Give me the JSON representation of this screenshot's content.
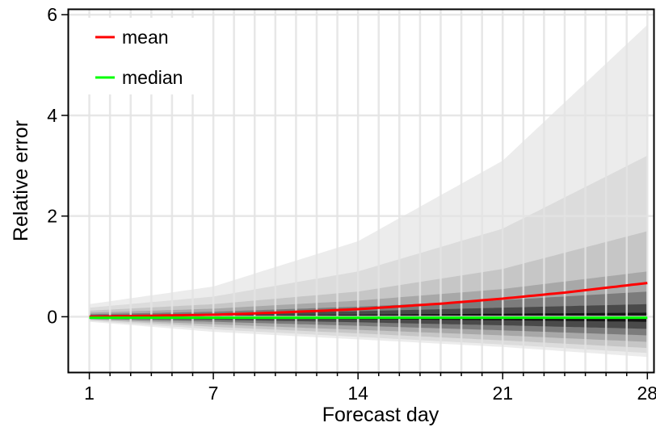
{
  "chart_data": {
    "type": "area",
    "xlabel": "Forecast day",
    "ylabel": "Relative error",
    "xlim": [
      0.0,
      28.3
    ],
    "ylim": [
      -1.1,
      6.1
    ],
    "x_ticks": [
      1,
      7,
      14,
      21,
      28
    ],
    "x_tick_labels": [
      "1",
      "7",
      "14",
      "21",
      "28"
    ],
    "y_ticks": [
      0,
      2,
      4,
      6
    ],
    "y_tick_labels": [
      "0",
      "2",
      "4",
      "6"
    ],
    "grid": "vertical at every forecast day, horizontal at y ticks",
    "legend_placement": "top-left",
    "days": [
      1,
      7,
      14,
      21,
      28
    ],
    "bands": [
      {
        "upper": [
          0.25,
          0.6,
          1.5,
          3.1,
          5.8
        ],
        "lower": [
          -0.1,
          -0.3,
          -0.45,
          -0.6,
          -0.8
        ],
        "color": "#ececec"
      },
      {
        "upper": [
          0.18,
          0.4,
          0.9,
          1.75,
          3.2
        ],
        "lower": [
          -0.08,
          -0.25,
          -0.4,
          -0.55,
          -0.72
        ],
        "color": "#dcdcdc"
      },
      {
        "upper": [
          0.12,
          0.25,
          0.5,
          0.95,
          1.7
        ],
        "lower": [
          -0.06,
          -0.2,
          -0.33,
          -0.47,
          -0.62
        ],
        "color": "#c6c6c6"
      },
      {
        "upper": [
          0.08,
          0.16,
          0.32,
          0.55,
          0.9
        ],
        "lower": [
          -0.05,
          -0.15,
          -0.26,
          -0.37,
          -0.5
        ],
        "color": "#a8a8a8"
      },
      {
        "upper": [
          0.05,
          0.1,
          0.2,
          0.33,
          0.5
        ],
        "lower": [
          -0.04,
          -0.1,
          -0.18,
          -0.27,
          -0.37
        ],
        "color": "#7c7c7c"
      },
      {
        "upper": [
          0.03,
          0.06,
          0.11,
          0.18,
          0.25
        ],
        "lower": [
          -0.03,
          -0.06,
          -0.11,
          -0.17,
          -0.24
        ],
        "color": "#4a4a4a"
      },
      {
        "upper": [
          0.01,
          0.02,
          0.04,
          0.06,
          0.08
        ],
        "lower": [
          -0.02,
          -0.03,
          -0.05,
          -0.07,
          -0.1
        ],
        "color": "#151515"
      }
    ],
    "series": [
      {
        "name": "mean",
        "color": "#ff0000",
        "x": [
          1,
          4,
          7,
          10,
          14,
          18,
          21,
          24,
          28
        ],
        "values": [
          0.0,
          0.02,
          0.04,
          0.08,
          0.15,
          0.26,
          0.36,
          0.48,
          0.67
        ]
      },
      {
        "name": "median",
        "color": "#00ff00",
        "x": [
          1,
          7,
          14,
          21,
          28
        ],
        "values": [
          -0.02,
          -0.02,
          -0.02,
          -0.02,
          -0.02
        ]
      }
    ]
  }
}
